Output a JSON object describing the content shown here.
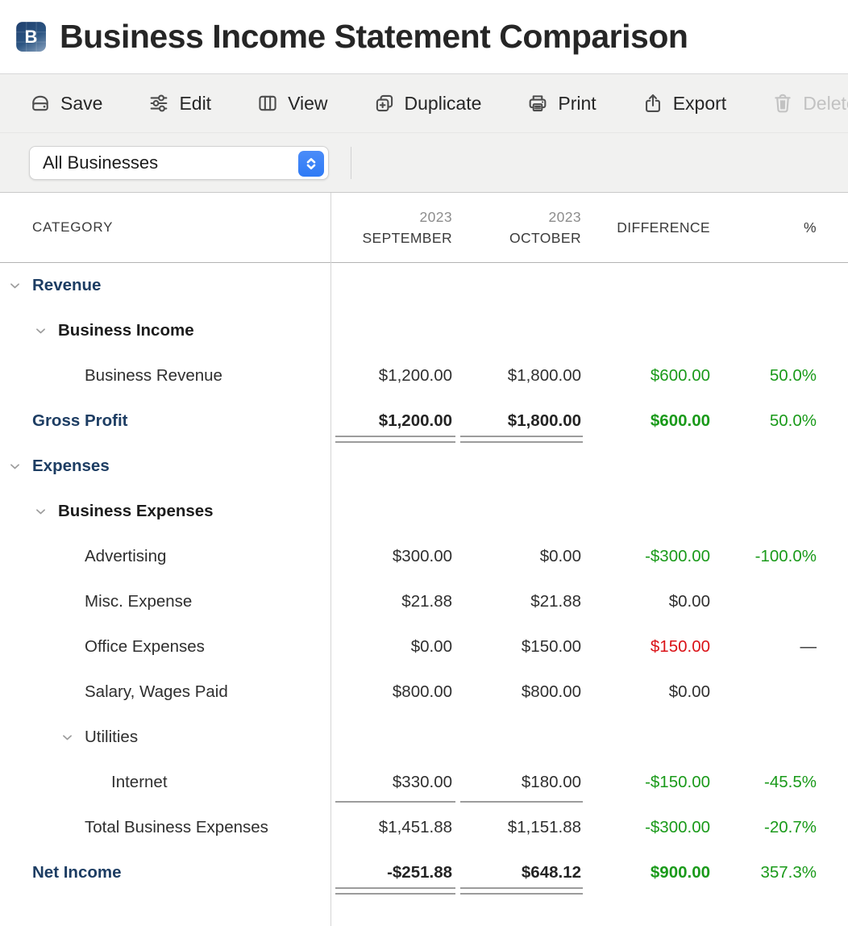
{
  "app": {
    "icon_letter": "B",
    "title": "Business Income Statement Comparison"
  },
  "toolbar": {
    "buttons": [
      {
        "id": "save",
        "label": "Save",
        "disabled": false
      },
      {
        "id": "edit",
        "label": "Edit",
        "disabled": false
      },
      {
        "id": "view",
        "label": "View",
        "disabled": false
      },
      {
        "id": "duplicate",
        "label": "Duplicate",
        "disabled": false
      },
      {
        "id": "print",
        "label": "Print",
        "disabled": false
      },
      {
        "id": "export",
        "label": "Export",
        "disabled": false
      },
      {
        "id": "delete",
        "label": "Delete",
        "disabled": true
      }
    ]
  },
  "filter": {
    "business_selector": {
      "value": "All Businesses"
    }
  },
  "table": {
    "header": {
      "category": "CATEGORY",
      "period1": {
        "year": "2023",
        "month": "SEPTEMBER"
      },
      "period2": {
        "year": "2023",
        "month": "OCTOBER"
      },
      "difference": "DIFFERENCE",
      "percent": "%"
    },
    "rows": [
      {
        "label": "Revenue",
        "style": "section",
        "indent": 0,
        "chevron": true,
        "sep": "",
        "oct": "",
        "diff": "",
        "pct": ""
      },
      {
        "label": "Business Income",
        "style": "subsection",
        "indent": 1,
        "chevron": true,
        "sep": "",
        "oct": "",
        "diff": "",
        "pct": ""
      },
      {
        "label": "Business Revenue",
        "style": "item",
        "indent": 2,
        "chevron": false,
        "sep": "$1,200.00",
        "oct": "$1,800.00",
        "diff": "$600.00",
        "pct": "50.0%",
        "diff_color": "green",
        "pct_color": "green"
      },
      {
        "label": "Gross Profit",
        "style": "total",
        "indent": 0,
        "chevron": false,
        "sep": "$1,200.00",
        "oct": "$1,800.00",
        "diff": "$600.00",
        "pct": "50.0%",
        "diff_color": "green",
        "pct_color": "green",
        "underline": "double"
      },
      {
        "label": "Expenses",
        "style": "section",
        "indent": 0,
        "chevron": true,
        "sep": "",
        "oct": "",
        "diff": "",
        "pct": ""
      },
      {
        "label": "Business Expenses",
        "style": "subsection",
        "indent": 1,
        "chevron": true,
        "sep": "",
        "oct": "",
        "diff": "",
        "pct": ""
      },
      {
        "label": "Advertising",
        "style": "item",
        "indent": 2,
        "chevron": false,
        "sep": "$300.00",
        "oct": "$0.00",
        "diff": "-$300.00",
        "pct": "-100.0%",
        "diff_color": "green",
        "pct_color": "green"
      },
      {
        "label": "Misc. Expense",
        "style": "item",
        "indent": 2,
        "chevron": false,
        "sep": "$21.88",
        "oct": "$21.88",
        "diff": "$0.00",
        "pct": ""
      },
      {
        "label": "Office Expenses",
        "style": "item",
        "indent": 2,
        "chevron": false,
        "sep": "$0.00",
        "oct": "$150.00",
        "diff": "$150.00",
        "pct": "—",
        "diff_color": "red"
      },
      {
        "label": "Salary, Wages Paid",
        "style": "item",
        "indent": 2,
        "chevron": false,
        "sep": "$800.00",
        "oct": "$800.00",
        "diff": "$0.00",
        "pct": ""
      },
      {
        "label": "Utilities",
        "style": "item",
        "indent": 2,
        "chevron": true,
        "sep": "",
        "oct": "",
        "diff": "",
        "pct": ""
      },
      {
        "label": "Internet",
        "style": "item",
        "indent": 3,
        "chevron": false,
        "sep": "$330.00",
        "oct": "$180.00",
        "diff": "-$150.00",
        "pct": "-45.5%",
        "diff_color": "green",
        "pct_color": "green",
        "underline": "single"
      },
      {
        "label": "Total Business Expenses",
        "style": "item",
        "indent": 2,
        "chevron": false,
        "sep": "$1,451.88",
        "oct": "$1,151.88",
        "diff": "-$300.00",
        "pct": "-20.7%",
        "diff_color": "green",
        "pct_color": "green"
      },
      {
        "label": "Net Income",
        "style": "total",
        "indent": 0,
        "chevron": false,
        "sep": "-$251.88",
        "oct": "$648.12",
        "diff": "$900.00",
        "pct": "357.3%",
        "diff_color": "green",
        "pct_color": "green",
        "underline": "double"
      }
    ]
  },
  "colors": {
    "positive": "#1a9a1a",
    "negative": "#da1217",
    "section_navy": "#1d3d63",
    "accent_blue": "#2f7bf6"
  }
}
